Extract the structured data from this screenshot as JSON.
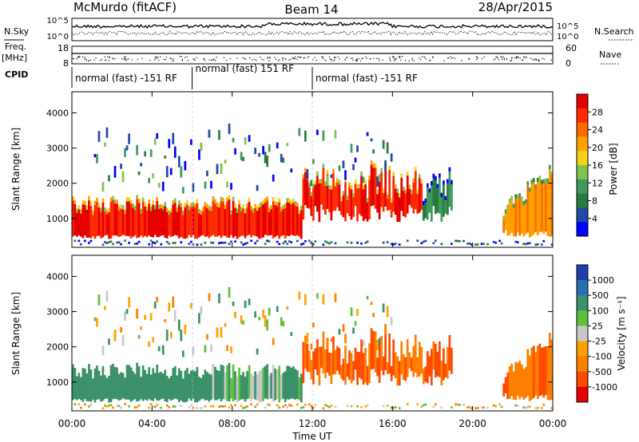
{
  "header": {
    "station": "McMurdo (fitACF)",
    "beam": "Beam 14",
    "date": "28/Apr/2015"
  },
  "labels": {
    "nsky": "N.Sky",
    "nsearch": "N.Search",
    "freq": "Freq.",
    "freq_unit": "[MHz]",
    "nave": "Nave",
    "cpid": "CPID"
  },
  "cpid_segments": [
    {
      "label": "normal (fast) -151 RF",
      "start_hour": 0,
      "end_hour": 6
    },
    {
      "label": "normal (fast) 151 RF",
      "start_hour": 6,
      "end_hour": 12
    },
    {
      "label": "normal (fast) -151 RF",
      "start_hour": 12,
      "end_hour": 24
    }
  ],
  "chart_data": [
    {
      "id": "noise",
      "type": "line",
      "left_axis": {
        "label": "N.Sky",
        "ticks": [
          "10^5",
          "10^0"
        ]
      },
      "right_axis": {
        "label": "N.Search",
        "ticks": [
          "10^5",
          "10^0"
        ]
      },
      "log_scale": true
    },
    {
      "id": "freq_nave",
      "type": "scatter",
      "left_axis": {
        "label": "Freq. [MHz]",
        "range": [
          8,
          18
        ],
        "ticks": [
          "18",
          "8"
        ]
      },
      "right_axis": {
        "label": "Nave",
        "range": [
          0,
          60
        ],
        "ticks": [
          "60",
          "0"
        ]
      }
    },
    {
      "id": "power",
      "type": "heatmap",
      "ylabel": "Slant Range [km]",
      "ylim": [
        180,
        4600
      ],
      "yticks": [
        1000,
        2000,
        3000,
        4000
      ],
      "xlim": [
        0,
        24
      ],
      "colorbar": {
        "label": "Power [dB]",
        "ticks": [
          "28",
          "24",
          "20",
          "16",
          "12",
          "8",
          "4"
        ],
        "colors": [
          "#e60000",
          "#ff2a00",
          "#ff6a00",
          "#ffa000",
          "#f2d21a",
          "#80c24c",
          "#3d9a5c",
          "#2a7a3e",
          "#204aa8",
          "#0000ff"
        ]
      }
    },
    {
      "id": "velocity",
      "type": "heatmap",
      "ylabel": "Slant Range [km]",
      "ylim": [
        180,
        4600
      ],
      "yticks": [
        1000,
        2000,
        3000,
        4000
      ],
      "xlabel": "Time UT",
      "xticks": [
        "00:00",
        "04:00",
        "08:00",
        "12:00",
        "16:00",
        "20:00",
        "00:00"
      ],
      "xlim": [
        0,
        24
      ],
      "colorbar": {
        "label": "Velocity [m s⁻¹]",
        "ticks": [
          "1000",
          "500",
          "100",
          "25",
          "-25",
          "-100",
          "-500",
          "-1000"
        ],
        "colors": [
          "#1f3fa8",
          "#2a70b0",
          "#3a9068",
          "#5ebf3e",
          "#c8c8c8",
          "#ffa000",
          "#ff8000",
          "#ff4a00",
          "#e60000"
        ]
      }
    }
  ]
}
